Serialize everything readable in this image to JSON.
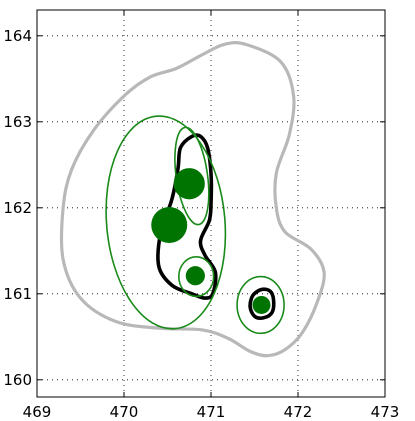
{
  "chart_data": {
    "type": "scatter",
    "title": "",
    "xlabel": "",
    "ylabel": "",
    "xlim": [
      469,
      473
    ],
    "ylim": [
      159.8,
      164.3
    ],
    "xticks": [
      469,
      470,
      471,
      472,
      473
    ],
    "yticks": [
      160,
      161,
      162,
      163,
      164
    ],
    "xtick_labels": [
      "469",
      "470",
      "471",
      "472",
      "473"
    ],
    "ytick_labels": [
      "160",
      "161",
      "162",
      "163",
      "164"
    ],
    "grid": true,
    "grid_style": "dotted",
    "colors": {
      "points": "#007400",
      "ellipses": "#1a8a1a",
      "outer_contour": "#b8b8b8",
      "inner_contour": "#000000",
      "axes": "#000000",
      "grid": "#000000"
    },
    "points": [
      {
        "x": 470.52,
        "y": 161.8,
        "size": 3
      },
      {
        "x": 470.75,
        "y": 162.28,
        "size": 2.6
      },
      {
        "x": 470.82,
        "y": 161.21,
        "size": 1.6
      },
      {
        "x": 471.58,
        "y": 160.87,
        "size": 1.5
      }
    ],
    "ellipses": [
      {
        "cx": 470.48,
        "cy": 161.83,
        "rx": 0.68,
        "ry": 1.24,
        "angle": -5
      },
      {
        "cx": 470.78,
        "cy": 162.37,
        "rx": 0.18,
        "ry": 0.57,
        "angle": -8
      },
      {
        "cx": 470.83,
        "cy": 161.2,
        "rx": 0.2,
        "ry": 0.23,
        "angle": 0
      },
      {
        "cx": 471.57,
        "cy": 160.87,
        "rx": 0.27,
        "ry": 0.33,
        "angle": 0
      }
    ],
    "outer_contour": [
      [
        471.4,
        163.9
      ],
      [
        471.15,
        163.9
      ],
      [
        470.9,
        163.78
      ],
      [
        470.6,
        163.62
      ],
      [
        470.3,
        163.52
      ],
      [
        470.0,
        163.3
      ],
      [
        469.65,
        162.9
      ],
      [
        469.4,
        162.45
      ],
      [
        469.3,
        162.0
      ],
      [
        469.3,
        161.4
      ],
      [
        469.5,
        160.95
      ],
      [
        469.9,
        160.68
      ],
      [
        470.4,
        160.6
      ],
      [
        470.9,
        160.58
      ],
      [
        471.2,
        160.48
      ],
      [
        471.45,
        160.33
      ],
      [
        471.65,
        160.28
      ],
      [
        471.85,
        160.35
      ],
      [
        472.05,
        160.55
      ],
      [
        472.22,
        160.9
      ],
      [
        472.3,
        161.25
      ],
      [
        472.15,
        161.52
      ],
      [
        471.85,
        161.72
      ],
      [
        471.75,
        162.0
      ],
      [
        471.75,
        162.4
      ],
      [
        471.9,
        162.85
      ],
      [
        471.95,
        163.3
      ],
      [
        471.8,
        163.7
      ]
    ],
    "inner_contours": [
      [
        [
          470.78,
          162.83
        ],
        [
          470.88,
          162.83
        ],
        [
          470.96,
          162.7
        ],
        [
          471.0,
          162.4
        ],
        [
          471.0,
          162.05
        ],
        [
          470.98,
          161.85
        ],
        [
          470.88,
          161.62
        ],
        [
          470.93,
          161.45
        ],
        [
          471.05,
          161.25
        ],
        [
          471.02,
          161.0
        ],
        [
          470.93,
          160.95
        ],
        [
          470.78,
          161.0
        ],
        [
          470.55,
          161.1
        ],
        [
          470.4,
          161.32
        ],
        [
          470.42,
          161.7
        ],
        [
          470.55,
          162.1
        ],
        [
          470.62,
          162.45
        ],
        [
          470.65,
          162.7
        ]
      ],
      [
        [
          471.58,
          161.05
        ],
        [
          471.68,
          161.03
        ],
        [
          471.72,
          160.92
        ],
        [
          471.7,
          160.78
        ],
        [
          471.6,
          160.72
        ],
        [
          471.5,
          160.74
        ],
        [
          471.45,
          160.85
        ],
        [
          471.48,
          160.98
        ]
      ]
    ]
  }
}
